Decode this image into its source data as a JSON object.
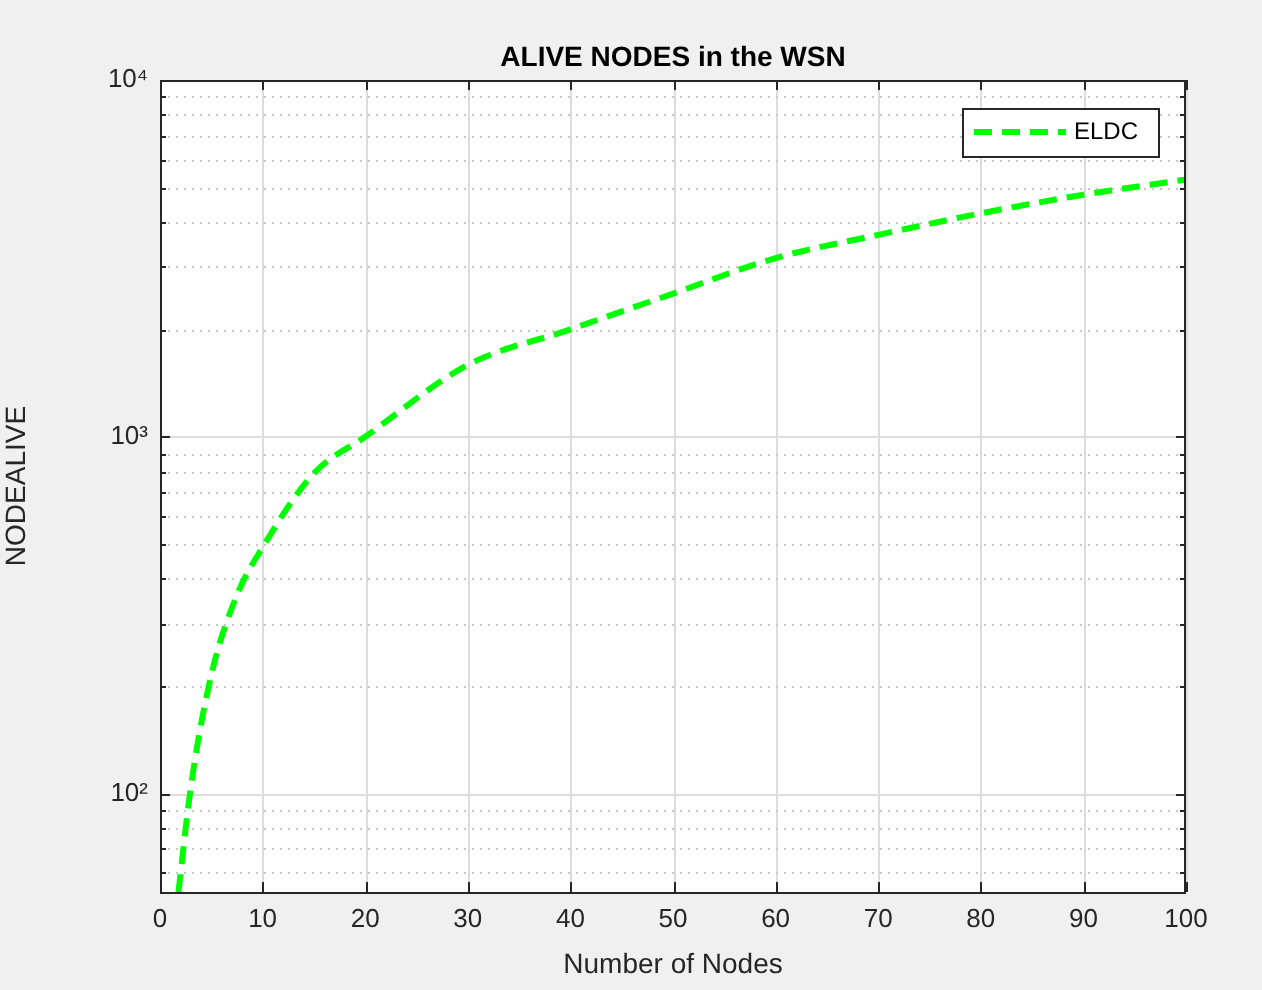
{
  "chart_data": {
    "type": "line",
    "title": "ALIVE NODES in the WSN",
    "xlabel": "Number of Nodes",
    "ylabel": "NODEALIVE",
    "log": "y",
    "grid": true,
    "legend": "top right",
    "line_style": "dashed",
    "marker": "none",
    "xlim": [
      0,
      100
    ],
    "xticks": [
      0,
      10,
      20,
      30,
      40,
      50,
      60,
      70,
      80,
      90,
      100
    ],
    "ylim": [
      53,
      10000
    ],
    "yticks": [
      {
        "value": 60,
        "label": null
      },
      {
        "value": 70,
        "label": null
      },
      {
        "value": 80,
        "label": null
      },
      {
        "value": 90,
        "label": null
      },
      {
        "value": 100,
        "label": "10²"
      },
      {
        "value": 200,
        "label": null
      },
      {
        "value": 300,
        "label": null
      },
      {
        "value": 400,
        "label": null
      },
      {
        "value": 500,
        "label": null
      },
      {
        "value": 600,
        "label": null
      },
      {
        "value": 700,
        "label": null
      },
      {
        "value": 800,
        "label": null
      },
      {
        "value": 900,
        "label": null
      },
      {
        "value": 1000,
        "label": "10³"
      },
      {
        "value": 2000,
        "label": null
      },
      {
        "value": 3000,
        "label": null
      },
      {
        "value": 4000,
        "label": null
      },
      {
        "value": 5000,
        "label": null
      },
      {
        "value": 6000,
        "label": null
      },
      {
        "value": 7000,
        "label": null
      },
      {
        "value": 8000,
        "label": null
      },
      {
        "value": 9000,
        "label": null
      },
      {
        "value": 10000,
        "label": "10⁴"
      }
    ],
    "series": [
      {
        "name": "ELDC",
        "color": "#00ff00",
        "x": [
          1.8,
          3,
          5,
          7.5,
          10,
          15,
          20,
          30,
          40,
          50,
          60,
          70,
          80,
          90,
          100
        ],
        "values": [
          53,
          104,
          215,
          360,
          490,
          790,
          1000,
          1590,
          2000,
          2520,
          3170,
          3680,
          4230,
          4770,
          5260
        ]
      }
    ]
  }
}
